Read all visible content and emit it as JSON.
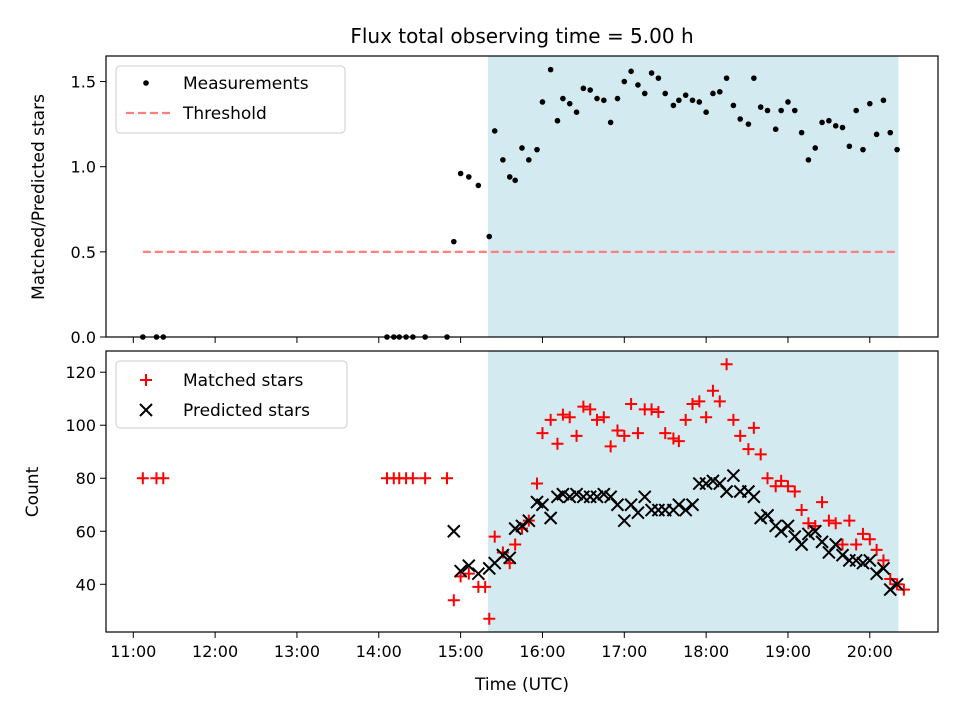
{
  "chart_data": [
    {
      "type": "scatter",
      "title": "Flux total observing time = 5.00 h",
      "ylabel": "Matched/Predicted stars",
      "ylim": [
        0,
        1.65
      ],
      "yticks": [
        0.0,
        0.5,
        1.0,
        1.5
      ],
      "ytick_labels": [
        "0.0",
        "0.5",
        "1.0",
        "1.5"
      ],
      "legend_position": "top-left",
      "shaded_span": {
        "x": [
          "15:20",
          "20:21"
        ],
        "color": "#d3eaf0"
      },
      "series": [
        {
          "name": "Measurements",
          "kind": "scatter",
          "color": "#000000",
          "x": [
            "11:07",
            "11:17",
            "11:22",
            "14:06",
            "14:11",
            "14:15",
            "14:20",
            "14:25",
            "14:34",
            "14:50",
            "14:55",
            "15:00",
            "15:06",
            "15:13",
            "15:21",
            "15:25",
            "15:31",
            "15:36",
            "15:40",
            "15:45",
            "15:50",
            "15:56",
            "16:00",
            "16:06",
            "16:11",
            "16:15",
            "16:20",
            "16:25",
            "16:30",
            "16:35",
            "16:40",
            "16:45",
            "16:50",
            "16:55",
            "17:00",
            "17:05",
            "17:10",
            "17:15",
            "17:20",
            "17:25",
            "17:30",
            "17:36",
            "17:40",
            "17:45",
            "17:50",
            "17:55",
            "18:00",
            "18:05",
            "18:10",
            "18:15",
            "18:20",
            "18:25",
            "18:31",
            "18:35",
            "18:40",
            "18:45",
            "18:51",
            "18:55",
            "19:00",
            "19:05",
            "19:10",
            "19:15",
            "19:20",
            "19:25",
            "19:30",
            "19:35",
            "19:40",
            "19:45",
            "19:50",
            "19:55",
            "20:00",
            "20:05",
            "20:10",
            "20:15",
            "20:20"
          ],
          "y": [
            0,
            0,
            0,
            0,
            0,
            0,
            0,
            0,
            0,
            0,
            0.56,
            0.96,
            0.94,
            0.89,
            0.59,
            1.21,
            1.04,
            0.94,
            0.92,
            1.11,
            1.04,
            1.1,
            1.38,
            1.57,
            1.27,
            1.4,
            1.37,
            1.32,
            1.46,
            1.45,
            1.4,
            1.39,
            1.26,
            1.4,
            1.5,
            1.56,
            1.48,
            1.43,
            1.55,
            1.52,
            1.43,
            1.36,
            1.39,
            1.42,
            1.39,
            1.38,
            1.32,
            1.43,
            1.44,
            1.52,
            1.36,
            1.28,
            1.25,
            1.52,
            1.35,
            1.33,
            1.22,
            1.33,
            1.38,
            1.33,
            1.2,
            1.04,
            1.11,
            1.26,
            1.27,
            1.24,
            1.23,
            1.12,
            1.33,
            1.1,
            1.37,
            1.19,
            1.39,
            1.2,
            1.1
          ]
        },
        {
          "name": "Threshold",
          "kind": "line",
          "style": "dashed",
          "color": "#ff7f7f",
          "x": [
            "11:07",
            "20:21"
          ],
          "y": [
            0.5,
            0.5
          ]
        }
      ]
    },
    {
      "type": "scatter",
      "xlabel": "Time (UTC)",
      "ylabel": "Count",
      "xlim": [
        "10:40",
        "20:50"
      ],
      "xticks": [
        "11:00",
        "12:00",
        "13:00",
        "14:00",
        "15:00",
        "16:00",
        "17:00",
        "18:00",
        "19:00",
        "20:00"
      ],
      "ylim": [
        22,
        128
      ],
      "yticks": [
        40,
        60,
        80,
        100,
        120
      ],
      "legend_position": "top-left",
      "shaded_span": {
        "x": [
          "15:20",
          "20:21"
        ],
        "color": "#d3eaf0"
      },
      "series": [
        {
          "name": "Matched stars",
          "marker": "+",
          "color": "#ff0000",
          "x": [
            "11:07",
            "11:17",
            "11:22",
            "14:06",
            "14:11",
            "14:15",
            "14:20",
            "14:25",
            "14:34",
            "14:50",
            "14:55",
            "15:00",
            "15:06",
            "15:13",
            "15:18",
            "15:21",
            "15:25",
            "15:31",
            "15:36",
            "15:40",
            "15:45",
            "15:50",
            "15:56",
            "16:00",
            "16:06",
            "16:11",
            "16:15",
            "16:20",
            "16:25",
            "16:30",
            "16:35",
            "16:40",
            "16:45",
            "16:50",
            "16:55",
            "17:00",
            "17:05",
            "17:10",
            "17:15",
            "17:20",
            "17:25",
            "17:30",
            "17:36",
            "17:40",
            "17:45",
            "17:50",
            "17:55",
            "18:00",
            "18:05",
            "18:10",
            "18:15",
            "18:20",
            "18:25",
            "18:31",
            "18:35",
            "18:40",
            "18:45",
            "18:51",
            "18:55",
            "19:00",
            "19:05",
            "19:10",
            "19:15",
            "19:20",
            "19:25",
            "19:30",
            "19:35",
            "19:40",
            "19:45",
            "19:50",
            "19:55",
            "20:00",
            "20:05",
            "20:10",
            "20:15",
            "20:20",
            "20:25"
          ],
          "y": [
            80,
            80,
            80,
            80,
            80,
            80,
            80,
            80,
            80,
            80,
            34,
            43,
            44,
            39,
            39,
            27,
            58,
            52,
            48,
            55,
            61,
            64,
            78,
            97,
            102,
            93,
            104,
            103,
            96,
            107,
            106,
            102,
            103,
            92,
            98,
            96,
            108,
            97,
            106,
            106,
            105,
            97,
            95,
            94,
            102,
            108,
            109,
            103,
            113,
            109,
            123,
            102,
            96,
            91,
            99,
            89,
            80,
            77,
            79,
            77,
            75,
            68,
            63,
            62,
            71,
            64,
            63,
            55,
            64,
            55,
            59,
            57,
            53,
            49,
            42,
            40,
            38
          ]
        },
        {
          "name": "Predicted stars",
          "marker": "x",
          "color": "#000000",
          "x": [
            "14:55",
            "15:00",
            "15:06",
            "15:13",
            "15:21",
            "15:25",
            "15:31",
            "15:36",
            "15:40",
            "15:45",
            "15:50",
            "15:56",
            "16:00",
            "16:06",
            "16:11",
            "16:15",
            "16:20",
            "16:25",
            "16:30",
            "16:35",
            "16:40",
            "16:45",
            "16:50",
            "16:55",
            "17:00",
            "17:05",
            "17:10",
            "17:15",
            "17:20",
            "17:25",
            "17:30",
            "17:36",
            "17:40",
            "17:45",
            "17:50",
            "17:55",
            "18:00",
            "18:05",
            "18:10",
            "18:15",
            "18:20",
            "18:25",
            "18:31",
            "18:35",
            "18:40",
            "18:45",
            "18:51",
            "18:55",
            "19:00",
            "19:05",
            "19:10",
            "19:15",
            "19:20",
            "19:25",
            "19:30",
            "19:35",
            "19:40",
            "19:45",
            "19:50",
            "19:55",
            "20:00",
            "20:05",
            "20:10",
            "20:15",
            "20:20"
          ],
          "y": [
            60,
            45,
            47,
            44,
            46,
            48,
            51,
            50,
            61,
            62,
            64,
            71,
            70,
            65,
            73,
            74,
            73,
            74,
            73,
            73,
            73,
            74,
            73,
            70,
            64,
            70,
            67,
            73,
            68,
            68,
            68,
            68,
            70,
            68,
            70,
            78,
            78,
            79,
            78,
            75,
            81,
            75,
            75,
            73,
            65,
            66,
            62,
            60,
            62,
            58,
            55,
            59,
            60,
            56,
            52,
            55,
            51,
            49,
            49,
            48,
            49,
            44,
            46,
            38,
            40
          ]
        }
      ]
    }
  ]
}
